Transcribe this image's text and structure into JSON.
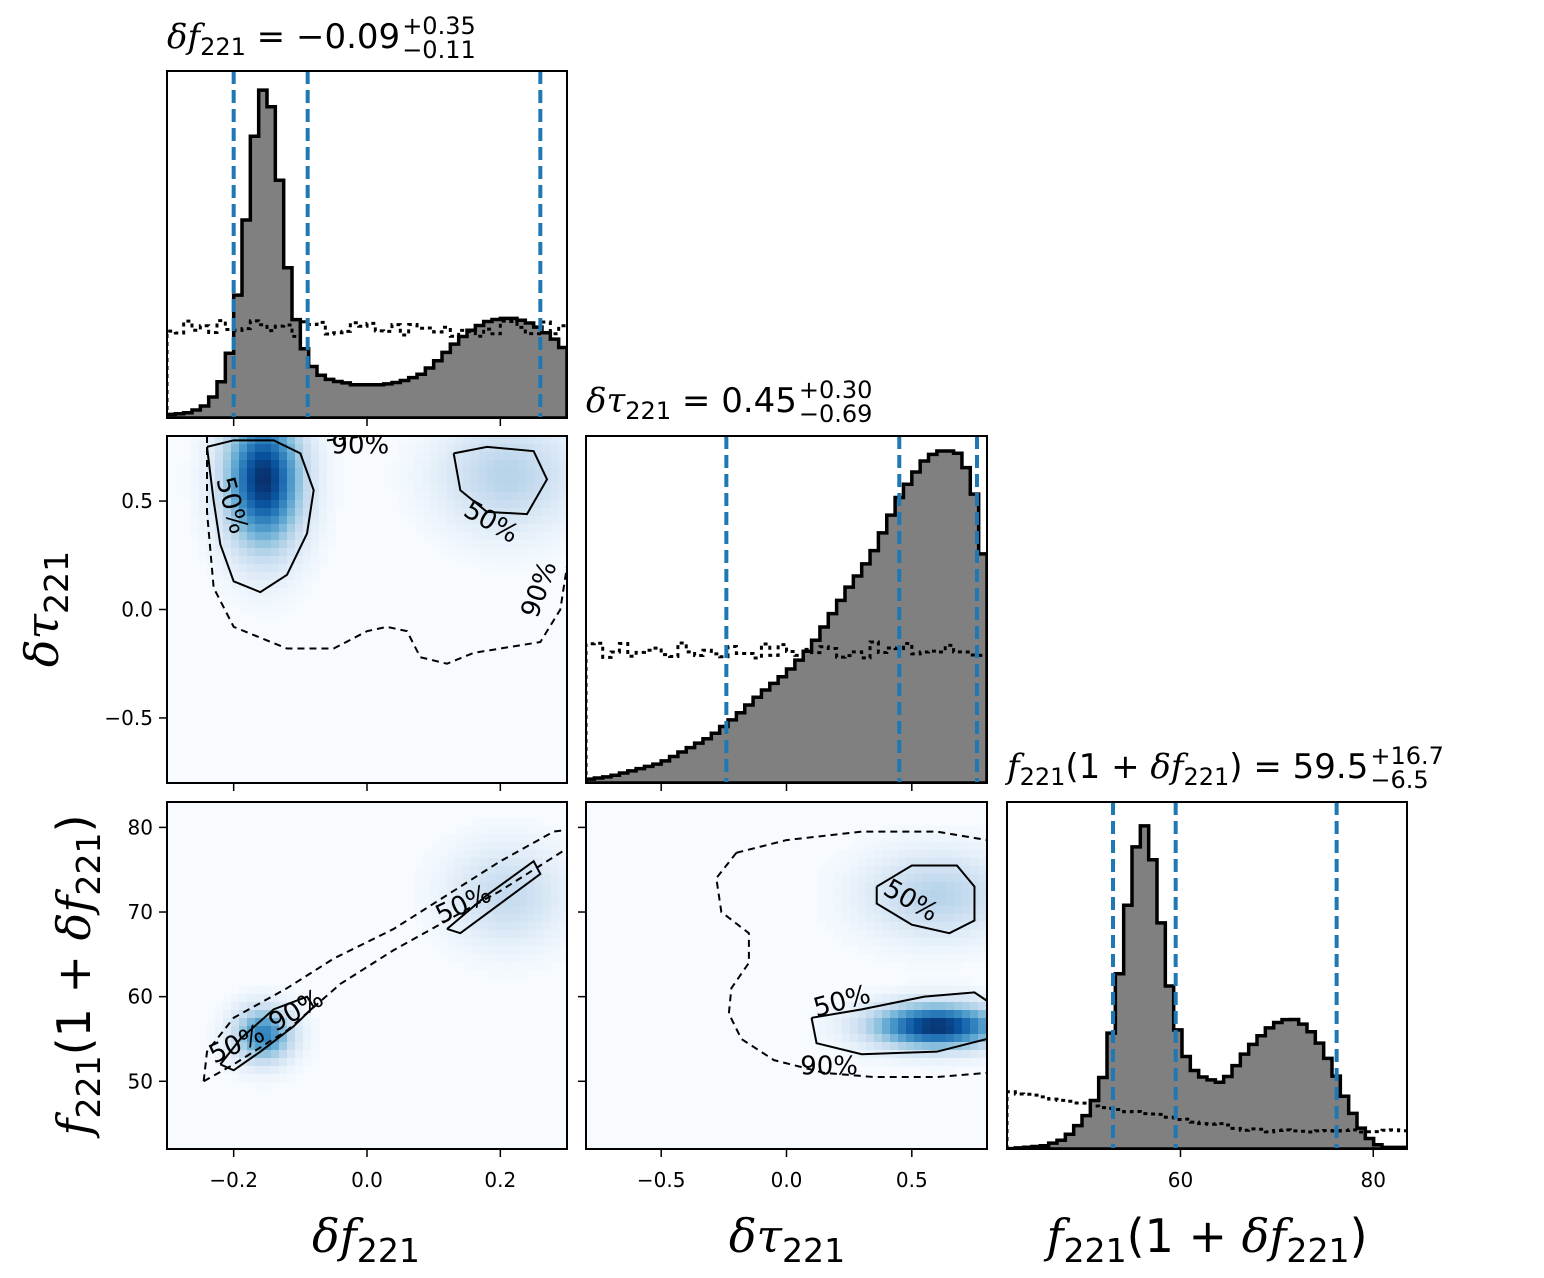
{
  "chart_data": [
    {
      "type": "histogram",
      "panel": "marginal-df221",
      "title": {
        "param": "δf",
        "sub": "221",
        "median": "−0.09",
        "plus": "+0.35",
        "minus": "−0.11"
      },
      "xlim": [
        -0.3,
        0.3
      ],
      "quantile_lines": [
        -0.2,
        -0.089,
        0.26
      ],
      "posterior": [
        [
          -0.3,
          0.01
        ],
        [
          -0.285,
          0.012
        ],
        [
          -0.27,
          0.015
        ],
        [
          -0.255,
          0.025
        ],
        [
          -0.24,
          0.04
        ],
        [
          -0.225,
          0.08
        ],
        [
          -0.21,
          0.15
        ],
        [
          -0.2,
          0.27
        ],
        [
          -0.19,
          0.43
        ],
        [
          -0.18,
          0.62
        ],
        [
          -0.17,
          0.83
        ],
        [
          -0.16,
          0.98
        ],
        [
          -0.15,
          1.0
        ],
        [
          -0.14,
          0.9
        ],
        [
          -0.13,
          0.69
        ],
        [
          -0.12,
          0.47
        ],
        [
          -0.11,
          0.33
        ],
        [
          -0.1,
          0.24
        ],
        [
          -0.09,
          0.19
        ],
        [
          -0.08,
          0.15
        ],
        [
          -0.07,
          0.13
        ],
        [
          -0.06,
          0.12
        ],
        [
          -0.05,
          0.11
        ],
        [
          -0.04,
          0.11
        ],
        [
          -0.03,
          0.105
        ],
        [
          -0.02,
          0.1
        ],
        [
          -0.01,
          0.1
        ],
        [
          0.0,
          0.1
        ],
        [
          0.02,
          0.1
        ],
        [
          0.04,
          0.105
        ],
        [
          0.06,
          0.115
        ],
        [
          0.08,
          0.13
        ],
        [
          0.1,
          0.16
        ],
        [
          0.12,
          0.2
        ],
        [
          0.14,
          0.24
        ],
        [
          0.16,
          0.27
        ],
        [
          0.18,
          0.29
        ],
        [
          0.2,
          0.3
        ],
        [
          0.22,
          0.3
        ],
        [
          0.24,
          0.29
        ],
        [
          0.26,
          0.27
        ],
        [
          0.28,
          0.24
        ],
        [
          0.3,
          0.2
        ]
      ],
      "prior_level": 0.27
    },
    {
      "type": "heatmap",
      "panel": "2d-df221-dtau221",
      "xlim": [
        -0.3,
        0.3
      ],
      "ylim": [
        -0.8,
        0.8
      ],
      "yticks": [
        "0.5",
        "0.0",
        "−0.5"
      ],
      "ylabel": {
        "param": "δτ",
        "sub": "221"
      },
      "blobs": [
        {
          "x": -0.155,
          "y": 0.6,
          "sx": 0.04,
          "sy": 0.22,
          "w": 1.0
        },
        {
          "x": 0.21,
          "y": 0.62,
          "sx": 0.07,
          "sy": 0.18,
          "w": 0.3
        }
      ],
      "contours": [
        {
          "level": "50%",
          "style": "solid",
          "points": [
            [
              -0.24,
              0.75
            ],
            [
              -0.2,
              0.78
            ],
            [
              -0.14,
              0.78
            ],
            [
              -0.1,
              0.72
            ],
            [
              -0.08,
              0.55
            ],
            [
              -0.09,
              0.35
            ],
            [
              -0.12,
              0.16
            ],
            [
              -0.16,
              0.08
            ],
            [
              -0.2,
              0.13
            ],
            [
              -0.22,
              0.3
            ],
            [
              -0.23,
              0.5
            ],
            [
              -0.24,
              0.75
            ]
          ]
        },
        {
          "level": "50%",
          "style": "solid",
          "points": [
            [
              0.13,
              0.72
            ],
            [
              0.18,
              0.75
            ],
            [
              0.25,
              0.73
            ],
            [
              0.27,
              0.6
            ],
            [
              0.24,
              0.44
            ],
            [
              0.18,
              0.45
            ],
            [
              0.14,
              0.55
            ],
            [
              0.13,
              0.72
            ]
          ]
        },
        {
          "level": "90%",
          "style": "dashed",
          "points": [
            [
              -0.24,
              0.8
            ],
            [
              -0.24,
              0.45
            ],
            [
              -0.23,
              0.1
            ],
            [
              -0.2,
              -0.08
            ],
            [
              -0.12,
              -0.18
            ],
            [
              -0.05,
              -0.18
            ],
            [
              0.0,
              -0.1
            ],
            [
              0.03,
              -0.08
            ],
            [
              0.06,
              -0.1
            ],
            [
              0.08,
              -0.22
            ],
            [
              0.12,
              -0.25
            ],
            [
              0.16,
              -0.2
            ],
            [
              0.2,
              -0.18
            ],
            [
              0.26,
              -0.15
            ],
            [
              0.29,
              0.0
            ],
            [
              0.3,
              0.2
            ]
          ]
        },
        {
          "level": "90%",
          "style": "dashed",
          "points": [
            [
              -0.06,
              0.78
            ],
            [
              0.0,
              0.8
            ],
            [
              0.1,
              0.8
            ]
          ]
        }
      ],
      "contour_labels": [
        {
          "text": "90%",
          "x": -0.01,
          "y": 0.72
        },
        {
          "text": "50%",
          "x": -0.215,
          "y": 0.47,
          "rotate": 75
        },
        {
          "text": "50%",
          "x": 0.18,
          "y": 0.37,
          "rotate": 30
        },
        {
          "text": "90%",
          "x": 0.27,
          "y": 0.08,
          "rotate": -70
        }
      ]
    },
    {
      "type": "histogram",
      "panel": "marginal-dtau221",
      "title": {
        "param": "δτ",
        "sub": "221",
        "median": "0.45",
        "plus": "+0.30",
        "minus": "−0.69"
      },
      "xlim": [
        -0.8,
        0.8
      ],
      "quantile_lines": [
        -0.24,
        0.45,
        0.76
      ],
      "posterior": [
        [
          -0.8,
          0.01
        ],
        [
          -0.7,
          0.02
        ],
        [
          -0.6,
          0.04
        ],
        [
          -0.5,
          0.06
        ],
        [
          -0.4,
          0.1
        ],
        [
          -0.3,
          0.14
        ],
        [
          -0.2,
          0.2
        ],
        [
          -0.1,
          0.27
        ],
        [
          0.0,
          0.33
        ],
        [
          0.05,
          0.37
        ],
        [
          0.1,
          0.41
        ],
        [
          0.15,
          0.47
        ],
        [
          0.2,
          0.53
        ],
        [
          0.25,
          0.59
        ],
        [
          0.3,
          0.64
        ],
        [
          0.35,
          0.7
        ],
        [
          0.4,
          0.78
        ],
        [
          0.45,
          0.86
        ],
        [
          0.5,
          0.92
        ],
        [
          0.55,
          0.97
        ],
        [
          0.6,
          1.0
        ],
        [
          0.65,
          1.0
        ],
        [
          0.7,
          0.99
        ],
        [
          0.75,
          0.87
        ],
        [
          0.8,
          0.6
        ]
      ],
      "prior_level": 0.4
    },
    {
      "type": "heatmap",
      "panel": "2d-df221-f221",
      "xlim": [
        -0.3,
        0.3
      ],
      "ylim": [
        42,
        83
      ],
      "xticks": [
        "−0.2",
        "0.0",
        "0.2"
      ],
      "xlabel": {
        "param": "δf",
        "sub": "221"
      },
      "yticks": [
        "80",
        "70",
        "60",
        "50"
      ],
      "ylabel": {
        "pre": "f",
        "sub1": "221",
        "mid": "(1 + ",
        "param": "δf",
        "sub2": "221",
        "post": ")"
      },
      "blobs": [
        {
          "x": -0.155,
          "y": 55.5,
          "sx": 0.03,
          "sy": 2.2,
          "w": 0.7
        },
        {
          "x": 0.21,
          "y": 72,
          "sx": 0.06,
          "sy": 4,
          "w": 0.25
        }
      ],
      "contours": [
        {
          "level": "50%",
          "style": "solid",
          "points": [
            [
              -0.22,
              52
            ],
            [
              -0.19,
              55
            ],
            [
              -0.14,
              58.5
            ],
            [
              -0.09,
              60
            ],
            [
              -0.08,
              58.8
            ],
            [
              -0.11,
              56.5
            ],
            [
              -0.16,
              53.5
            ],
            [
              -0.2,
              51.3
            ],
            [
              -0.22,
              52
            ]
          ]
        },
        {
          "level": "50%",
          "style": "solid",
          "points": [
            [
              0.12,
              68
            ],
            [
              0.18,
              72
            ],
            [
              0.25,
              76
            ],
            [
              0.26,
              74.5
            ],
            [
              0.2,
              71
            ],
            [
              0.14,
              67.5
            ],
            [
              0.12,
              68
            ]
          ]
        },
        {
          "level": "90%",
          "style": "dashed",
          "points": [
            [
              -0.245,
              50
            ],
            [
              -0.24,
              53.5
            ],
            [
              -0.2,
              57.5
            ],
            [
              -0.12,
              61
            ],
            [
              -0.05,
              64.5
            ],
            [
              0.04,
              68
            ],
            [
              0.12,
              72
            ],
            [
              0.2,
              76
            ],
            [
              0.28,
              79.5
            ],
            [
              0.3,
              79.7
            ]
          ]
        },
        {
          "level": "90%",
          "style": "dashed",
          "points": [
            [
              -0.245,
              50
            ],
            [
              -0.2,
              52
            ],
            [
              -0.12,
              56
            ],
            [
              -0.04,
              61.5
            ],
            [
              0.04,
              65.5
            ],
            [
              0.12,
              69
            ],
            [
              0.2,
              72.5
            ],
            [
              0.28,
              76.5
            ],
            [
              0.3,
              77.5
            ]
          ]
        }
      ],
      "contour_labels": [
        {
          "text": "50%",
          "x": 0.15,
          "y": 70,
          "rotate": -25
        },
        {
          "text": "50%",
          "x": -0.19,
          "y": 53.5,
          "rotate": -25
        },
        {
          "text": "90%",
          "x": -0.1,
          "y": 57.5,
          "rotate": -30
        }
      ]
    },
    {
      "type": "heatmap",
      "panel": "2d-dtau221-f221",
      "xlim": [
        -0.8,
        0.8
      ],
      "ylim": [
        42,
        83
      ],
      "xticks": [
        "−0.5",
        "0.0",
        "0.5"
      ],
      "xlabel": {
        "param": "δτ",
        "sub": "221"
      },
      "blobs": [
        {
          "x": 0.6,
          "y": 56.5,
          "sx": 0.18,
          "sy": 1.8,
          "w": 1.0
        },
        {
          "x": 0.6,
          "y": 72,
          "sx": 0.2,
          "sy": 3.5,
          "w": 0.3
        }
      ],
      "contours": [
        {
          "level": "50%",
          "style": "solid",
          "points": [
            [
              0.1,
              57.5
            ],
            [
              0.3,
              58.5
            ],
            [
              0.55,
              60
            ],
            [
              0.75,
              60.5
            ],
            [
              0.8,
              59.5
            ],
            [
              0.8,
              55
            ],
            [
              0.6,
              53.5
            ],
            [
              0.3,
              53.2
            ],
            [
              0.12,
              54.5
            ],
            [
              0.1,
              57.5
            ]
          ]
        },
        {
          "level": "50%",
          "style": "solid",
          "points": [
            [
              0.36,
              73
            ],
            [
              0.5,
              75.5
            ],
            [
              0.68,
              75.5
            ],
            [
              0.75,
              73
            ],
            [
              0.75,
              69
            ],
            [
              0.65,
              67.5
            ],
            [
              0.5,
              68.5
            ],
            [
              0.36,
              71
            ],
            [
              0.36,
              73
            ]
          ]
        },
        {
          "level": "90%",
          "style": "dashed",
          "points": [
            [
              -0.2,
              77
            ],
            [
              0.0,
              78.5
            ],
            [
              0.3,
              79.5
            ],
            [
              0.6,
              79.5
            ],
            [
              0.8,
              78.5
            ]
          ]
        },
        {
          "level": "90%",
          "style": "dashed",
          "points": [
            [
              -0.2,
              77
            ],
            [
              -0.28,
              74
            ],
            [
              -0.26,
              70
            ],
            [
              -0.15,
              67.5
            ],
            [
              -0.15,
              64
            ],
            [
              -0.22,
              61
            ],
            [
              -0.23,
              58
            ],
            [
              -0.18,
              55
            ],
            [
              -0.05,
              52.5
            ],
            [
              0.15,
              51
            ],
            [
              0.35,
              50.5
            ],
            [
              0.6,
              50.5
            ],
            [
              0.8,
              51
            ]
          ]
        }
      ],
      "contour_labels": [
        {
          "text": "50%",
          "x": 0.48,
          "y": 70.5,
          "rotate": 30
        },
        {
          "text": "50%",
          "x": 0.23,
          "y": 58.5,
          "rotate": -15
        },
        {
          "text": "90%",
          "x": 0.17,
          "y": 50.8
        }
      ]
    },
    {
      "type": "histogram",
      "panel": "marginal-f221",
      "title": {
        "pre": "f",
        "sub1": "221",
        "mid": "(1 + ",
        "param": "δf",
        "sub2": "221",
        "post": ") = ",
        "median": "59.5",
        "plus": "+16.7",
        "minus": "−6.5"
      },
      "xlim": [
        42,
        83.5
      ],
      "xticks": [
        60,
        80
      ],
      "xlabel": {
        "pre": "f",
        "sub1": "221",
        "mid": "(1 + ",
        "param": "δf",
        "sub2": "221",
        "post": ")"
      },
      "quantile_lines": [
        53.0,
        59.5,
        76.2
      ],
      "posterior": [
        [
          42,
          0.0
        ],
        [
          44,
          0.005
        ],
        [
          46,
          0.01
        ],
        [
          48,
          0.03
        ],
        [
          49,
          0.06
        ],
        [
          50,
          0.09
        ],
        [
          51,
          0.14
        ],
        [
          52,
          0.22
        ],
        [
          53,
          0.38
        ],
        [
          54,
          0.6
        ],
        [
          55,
          0.85
        ],
        [
          56,
          1.0
        ],
        [
          57,
          0.9
        ],
        [
          58,
          0.68
        ],
        [
          59,
          0.46
        ],
        [
          60,
          0.32
        ],
        [
          61,
          0.25
        ],
        [
          62,
          0.22
        ],
        [
          63,
          0.21
        ],
        [
          64,
          0.2
        ],
        [
          65,
          0.22
        ],
        [
          66,
          0.26
        ],
        [
          67,
          0.3
        ],
        [
          68,
          0.33
        ],
        [
          69,
          0.36
        ],
        [
          70,
          0.38
        ],
        [
          71,
          0.39
        ],
        [
          72,
          0.39
        ],
        [
          73,
          0.37
        ],
        [
          74,
          0.34
        ],
        [
          75,
          0.29
        ],
        [
          76,
          0.23
        ],
        [
          77,
          0.16
        ],
        [
          78,
          0.1
        ],
        [
          79,
          0.05
        ],
        [
          80,
          0.02
        ],
        [
          81,
          0.005
        ]
      ],
      "prior_start": 0.17,
      "prior_end": 0.055
    }
  ],
  "colors": {
    "hist_fill": "#808080",
    "quantile": "#1f77b4",
    "heat_low": "#f7fbff",
    "heat_high": "#08306b"
  }
}
